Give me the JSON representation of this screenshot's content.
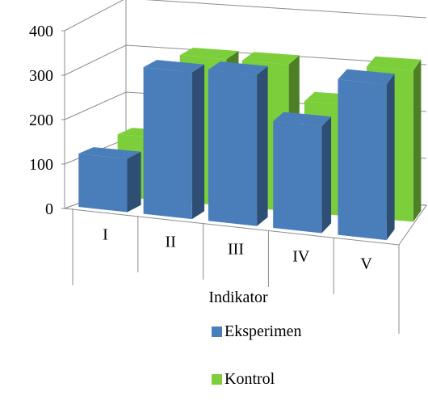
{
  "chart_data": {
    "type": "bar",
    "subtype": "3d-clustered-column",
    "categories": [
      "I",
      "II",
      "III",
      "IV",
      "V"
    ],
    "xlabel": "Indikator",
    "ylabel": "",
    "ylim": [
      0,
      400
    ],
    "yticks": [
      "0",
      "100",
      "200",
      "300",
      "400"
    ],
    "grid": true,
    "legend_position": "bottom",
    "series": [
      {
        "name": "Eksperimen",
        "color": "#4a7ebb",
        "values": [
          120,
          330,
          340,
          240,
          350
        ]
      },
      {
        "name": "Kontrol",
        "color": "#7ccf3b",
        "values": [
          140,
          330,
          330,
          250,
          340
        ]
      }
    ]
  }
}
